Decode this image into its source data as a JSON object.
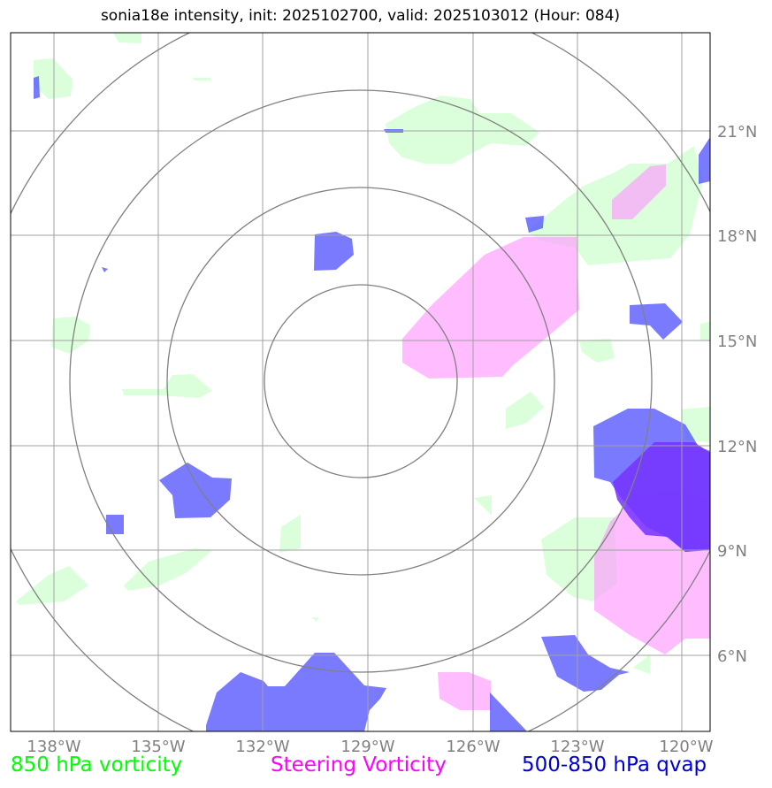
{
  "title": "sonia18e intensity, init: 2025102700, valid: 2025103012 (Hour: 084)",
  "map": {
    "lon_ticks": [
      "138°W",
      "135°W",
      "132°W",
      "129°W",
      "126°W",
      "123°W",
      "120°W"
    ],
    "lat_ticks": [
      "21°N",
      "18°N",
      "15°N",
      "12°N",
      "9°N",
      "6°N"
    ],
    "range_rings": 4
  },
  "legend": {
    "vorticity_850": "850 hPa vorticity",
    "steering": "Steering Vorticity",
    "qvap": "500-850 hPa qvap"
  },
  "colors": {
    "vorticity_850": "#00ff00",
    "steering": "#ff00ff",
    "qvap": "#0000cc",
    "vort_fill": "#ccffcc",
    "steer_fill": "#ff99ff",
    "qvap_fill": "#4d4dff",
    "grid": "#a0a0a0",
    "rings": "#808080"
  }
}
